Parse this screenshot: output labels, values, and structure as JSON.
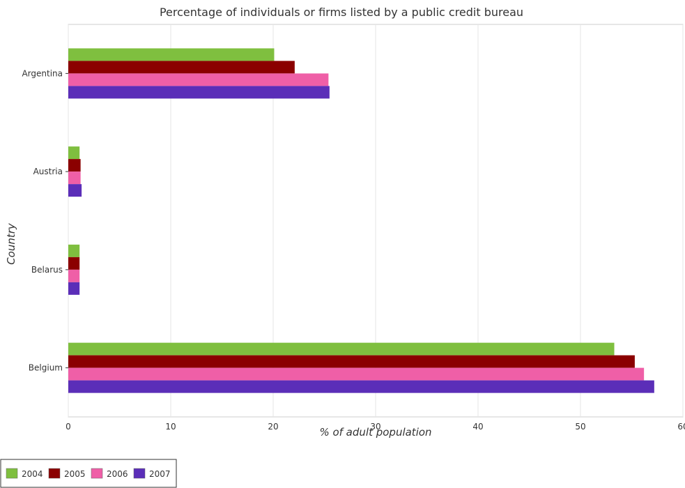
{
  "chart_data": {
    "type": "bar",
    "orientation": "horizontal",
    "title": "Percentage of individuals or firms listed by a public credit bureau",
    "xlabel": "% of adult population",
    "ylabel": "Country",
    "xlim": [
      0,
      60
    ],
    "xticks": [
      0,
      10,
      20,
      30,
      40,
      50,
      60
    ],
    "grid": true,
    "legend_position": "bottom-left",
    "categories": [
      "Argentina",
      "Austria",
      "Belarus",
      "Belgium"
    ],
    "series": [
      {
        "name": "2004",
        "color": "#7fbf3f",
        "values": [
          20.1,
          1.1,
          1.1,
          53.3
        ]
      },
      {
        "name": "2005",
        "color": "#8b0000",
        "values": [
          22.1,
          1.2,
          1.1,
          55.3
        ]
      },
      {
        "name": "2006",
        "color": "#ef5fa7",
        "values": [
          25.4,
          1.2,
          1.1,
          56.2
        ]
      },
      {
        "name": "2007",
        "color": "#5b2eb8",
        "values": [
          25.5,
          1.3,
          1.1,
          57.2
        ]
      }
    ]
  }
}
